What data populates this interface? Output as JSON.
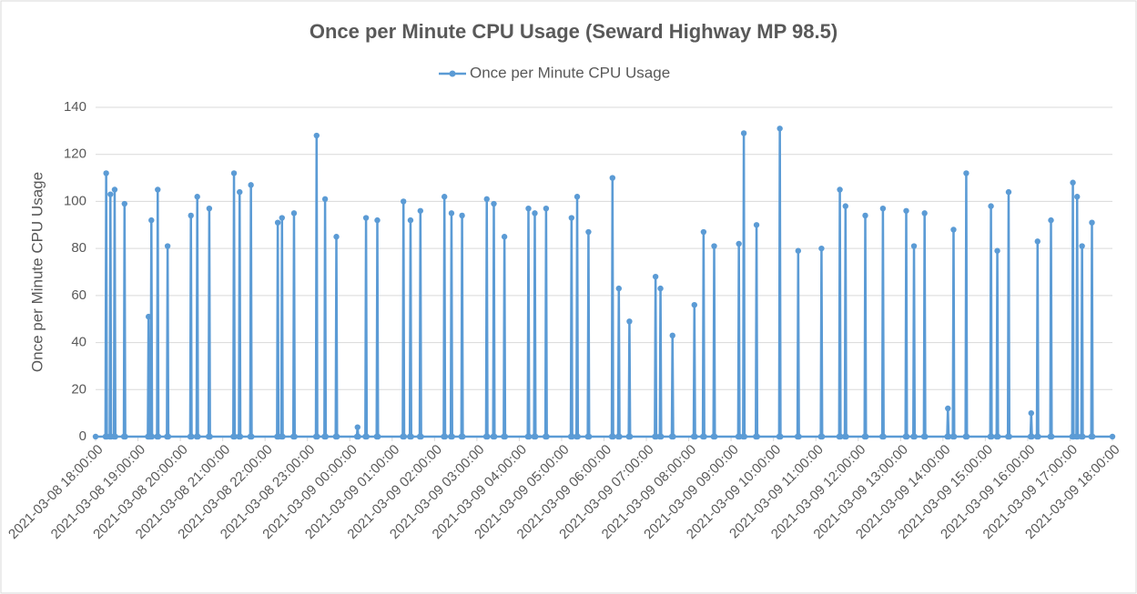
{
  "chart_data": {
    "type": "line",
    "title": "Once per Minute CPU Usage (Seward Highway MP 98.5)",
    "ylabel": "Once per Minute CPU Usage",
    "ylim": [
      0,
      140
    ],
    "yticks": [
      0,
      20,
      40,
      60,
      80,
      100,
      120,
      140
    ],
    "grid": true,
    "legend": "top",
    "xlim": [
      "2021-03-08 18:00:00",
      "2021-03-09 18:00:00"
    ],
    "xticks": [
      "2021-03-08 18:00:00",
      "2021-03-08 19:00:00",
      "2021-03-08 20:00:00",
      "2021-03-08 21:00:00",
      "2021-03-08 22:00:00",
      "2021-03-08 23:00:00",
      "2021-03-09 00:00:00",
      "2021-03-09 01:00:00",
      "2021-03-09 02:00:00",
      "2021-03-09 03:00:00",
      "2021-03-09 04:00:00",
      "2021-03-09 05:00:00",
      "2021-03-09 06:00:00",
      "2021-03-09 07:00:00",
      "2021-03-09 08:00:00",
      "2021-03-09 09:00:00",
      "2021-03-09 10:00:00",
      "2021-03-09 11:00:00",
      "2021-03-09 12:00:00",
      "2021-03-09 13:00:00",
      "2021-03-09 14:00:00",
      "2021-03-09 15:00:00",
      "2021-03-09 16:00:00",
      "2021-03-09 17:00:00",
      "2021-03-09 18:00:00"
    ],
    "x": [
      "2021-03-08 18:00:00",
      "2021-03-08 18:14:00",
      "2021-03-08 18:15:00",
      "2021-03-08 18:16:00",
      "2021-03-08 18:20:00",
      "2021-03-08 18:21:00",
      "2021-03-08 18:22:00",
      "2021-03-08 18:26:00",
      "2021-03-08 18:27:00",
      "2021-03-08 18:28:00",
      "2021-03-08 18:40:00",
      "2021-03-08 18:41:00",
      "2021-03-08 18:42:00",
      "2021-03-08 19:14:00",
      "2021-03-08 19:15:00",
      "2021-03-08 19:16:00",
      "2021-03-08 19:18:00",
      "2021-03-08 19:19:00",
      "2021-03-08 19:20:00",
      "2021-03-08 19:27:00",
      "2021-03-08 19:28:00",
      "2021-03-08 19:29:00",
      "2021-03-08 19:41:00",
      "2021-03-08 19:42:00",
      "2021-03-08 19:43:00",
      "2021-03-08 20:14:00",
      "2021-03-08 20:15:00",
      "2021-03-08 20:16:00",
      "2021-03-08 20:23:00",
      "2021-03-08 20:24:00",
      "2021-03-08 20:25:00",
      "2021-03-08 20:40:00",
      "2021-03-08 20:41:00",
      "2021-03-08 20:42:00",
      "2021-03-08 21:15:00",
      "2021-03-08 21:16:00",
      "2021-03-08 21:17:00",
      "2021-03-08 21:23:00",
      "2021-03-08 21:24:00",
      "2021-03-08 21:25:00",
      "2021-03-08 21:39:00",
      "2021-03-08 21:40:00",
      "2021-03-08 21:41:00",
      "2021-03-08 22:17:00",
      "2021-03-08 22:18:00",
      "2021-03-08 22:19:00",
      "2021-03-08 22:23:00",
      "2021-03-08 22:24:00",
      "2021-03-08 22:25:00",
      "2021-03-08 22:40:00",
      "2021-03-08 22:41:00",
      "2021-03-08 22:42:00",
      "2021-03-08 23:12:00",
      "2021-03-08 23:13:00",
      "2021-03-08 23:14:00",
      "2021-03-08 23:24:00",
      "2021-03-08 23:25:00",
      "2021-03-08 23:26:00",
      "2021-03-08 23:40:00",
      "2021-03-08 23:41:00",
      "2021-03-08 23:42:00",
      "2021-03-09 00:10:00",
      "2021-03-09 00:11:00",
      "2021-03-09 00:12:00",
      "2021-03-09 00:22:00",
      "2021-03-09 00:23:00",
      "2021-03-09 00:24:00",
      "2021-03-09 00:38:00",
      "2021-03-09 00:39:00",
      "2021-03-09 00:40:00",
      "2021-03-09 01:15:00",
      "2021-03-09 01:16:00",
      "2021-03-09 01:17:00",
      "2021-03-09 01:25:00",
      "2021-03-09 01:26:00",
      "2021-03-09 01:27:00",
      "2021-03-09 01:39:00",
      "2021-03-09 01:40:00",
      "2021-03-09 01:41:00",
      "2021-03-09 02:13:00",
      "2021-03-09 02:14:00",
      "2021-03-09 02:15:00",
      "2021-03-09 02:23:00",
      "2021-03-09 02:24:00",
      "2021-03-09 02:25:00",
      "2021-03-09 02:38:00",
      "2021-03-09 02:39:00",
      "2021-03-09 02:40:00",
      "2021-03-09 03:13:00",
      "2021-03-09 03:14:00",
      "2021-03-09 03:15:00",
      "2021-03-09 03:23:00",
      "2021-03-09 03:24:00",
      "2021-03-09 03:25:00",
      "2021-03-09 03:38:00",
      "2021-03-09 03:39:00",
      "2021-03-09 03:40:00",
      "2021-03-09 04:12:00",
      "2021-03-09 04:13:00",
      "2021-03-09 04:14:00",
      "2021-03-09 04:21:00",
      "2021-03-09 04:22:00",
      "2021-03-09 04:23:00",
      "2021-03-09 04:37:00",
      "2021-03-09 04:38:00",
      "2021-03-09 04:39:00",
      "2021-03-09 05:13:00",
      "2021-03-09 05:14:00",
      "2021-03-09 05:15:00",
      "2021-03-09 05:21:00",
      "2021-03-09 05:22:00",
      "2021-03-09 05:23:00",
      "2021-03-09 05:37:00",
      "2021-03-09 05:38:00",
      "2021-03-09 05:39:00",
      "2021-03-09 06:11:00",
      "2021-03-09 06:12:00",
      "2021-03-09 06:13:00",
      "2021-03-09 06:20:00",
      "2021-03-09 06:21:00",
      "2021-03-09 06:22:00",
      "2021-03-09 06:35:00",
      "2021-03-09 06:36:00",
      "2021-03-09 06:37:00",
      "2021-03-09 07:12:00",
      "2021-03-09 07:13:00",
      "2021-03-09 07:14:00",
      "2021-03-09 07:19:00",
      "2021-03-09 07:20:00",
      "2021-03-09 07:21:00",
      "2021-03-09 07:36:00",
      "2021-03-09 07:37:00",
      "2021-03-09 07:38:00",
      "2021-03-09 08:07:00",
      "2021-03-09 08:08:00",
      "2021-03-09 08:09:00",
      "2021-03-09 08:20:00",
      "2021-03-09 08:21:00",
      "2021-03-09 08:22:00",
      "2021-03-09 08:35:00",
      "2021-03-09 08:36:00",
      "2021-03-09 08:37:00",
      "2021-03-09 09:10:00",
      "2021-03-09 09:11:00",
      "2021-03-09 09:12:00",
      "2021-03-09 09:17:00",
      "2021-03-09 09:18:00",
      "2021-03-09 09:19:00",
      "2021-03-09 09:35:00",
      "2021-03-09 09:36:00",
      "2021-03-09 09:37:00",
      "2021-03-09 10:08:00",
      "2021-03-09 10:09:00",
      "2021-03-09 10:10:00",
      "2021-03-09 10:34:00",
      "2021-03-09 10:35:00",
      "2021-03-09 10:36:00",
      "2021-03-09 11:07:00",
      "2021-03-09 11:08:00",
      "2021-03-09 11:09:00",
      "2021-03-09 11:33:00",
      "2021-03-09 11:34:00",
      "2021-03-09 11:35:00",
      "2021-03-09 11:41:00",
      "2021-03-09 11:42:00",
      "2021-03-09 11:43:00",
      "2021-03-09 12:09:00",
      "2021-03-09 12:10:00",
      "2021-03-09 12:11:00",
      "2021-03-09 12:34:00",
      "2021-03-09 12:35:00",
      "2021-03-09 12:36:00",
      "2021-03-09 13:07:00",
      "2021-03-09 13:08:00",
      "2021-03-09 13:09:00",
      "2021-03-09 13:18:00",
      "2021-03-09 13:19:00",
      "2021-03-09 13:20:00",
      "2021-03-09 13:33:00",
      "2021-03-09 13:34:00",
      "2021-03-09 13:35:00",
      "2021-03-09 14:06:00",
      "2021-03-09 14:07:00",
      "2021-03-09 14:08:00",
      "2021-03-09 14:14:00",
      "2021-03-09 14:15:00",
      "2021-03-09 14:16:00",
      "2021-03-09 14:32:00",
      "2021-03-09 14:33:00",
      "2021-03-09 14:34:00",
      "2021-03-09 15:07:00",
      "2021-03-09 15:08:00",
      "2021-03-09 15:09:00",
      "2021-03-09 15:16:00",
      "2021-03-09 15:17:00",
      "2021-03-09 15:18:00",
      "2021-03-09 15:32:00",
      "2021-03-09 15:33:00",
      "2021-03-09 15:34:00",
      "2021-03-09 16:04:00",
      "2021-03-09 16:05:00",
      "2021-03-09 16:06:00",
      "2021-03-09 16:13:00",
      "2021-03-09 16:14:00",
      "2021-03-09 16:15:00",
      "2021-03-09 16:32:00",
      "2021-03-09 16:33:00",
      "2021-03-09 16:34:00",
      "2021-03-09 17:03:00",
      "2021-03-09 17:04:00",
      "2021-03-09 17:05:00",
      "2021-03-09 17:09:00",
      "2021-03-09 17:10:00",
      "2021-03-09 17:11:00",
      "2021-03-09 17:16:00",
      "2021-03-09 17:17:00",
      "2021-03-09 17:18:00",
      "2021-03-09 17:30:00",
      "2021-03-09 17:31:00",
      "2021-03-09 17:32:00",
      "2021-03-09 18:00:00"
    ],
    "series": [
      {
        "name": "Once per Minute CPU Usage",
        "color": "#5b9bd5",
        "values": [
          0,
          0,
          112,
          0,
          0,
          103,
          0,
          0,
          105,
          0,
          0,
          99,
          0,
          0,
          51,
          0,
          0,
          92,
          0,
          0,
          105,
          0,
          0,
          81,
          0,
          0,
          94,
          0,
          0,
          102,
          0,
          0,
          97,
          0,
          0,
          112,
          0,
          0,
          104,
          0,
          0,
          107,
          0,
          0,
          91,
          0,
          0,
          93,
          0,
          0,
          95,
          0,
          0,
          128,
          0,
          0,
          101,
          0,
          0,
          85,
          0,
          0,
          4,
          0,
          0,
          93,
          0,
          0,
          92,
          0,
          0,
          100,
          0,
          0,
          92,
          0,
          0,
          96,
          0,
          0,
          102,
          0,
          0,
          95,
          0,
          0,
          94,
          0,
          0,
          101,
          0,
          0,
          99,
          0,
          0,
          85,
          0,
          0,
          97,
          0,
          0,
          95,
          0,
          0,
          97,
          0,
          0,
          93,
          0,
          0,
          102,
          0,
          0,
          87,
          0,
          0,
          110,
          0,
          0,
          63,
          0,
          0,
          49,
          0,
          0,
          68,
          0,
          0,
          63,
          0,
          0,
          43,
          0,
          0,
          56,
          0,
          0,
          87,
          0,
          0,
          81,
          0,
          0,
          82,
          0,
          0,
          129,
          0,
          0,
          90,
          0,
          0,
          131,
          0,
          0,
          79,
          0,
          0,
          80,
          0,
          0,
          105,
          0,
          0,
          98,
          0,
          0,
          94,
          0,
          0,
          97,
          0,
          0,
          96,
          0,
          0,
          81,
          0,
          0,
          95,
          0,
          0,
          12,
          0,
          0,
          88,
          0,
          0,
          112,
          0,
          0,
          98,
          0,
          0,
          79,
          0,
          0,
          104,
          0,
          0,
          10,
          0,
          0,
          83,
          0,
          0,
          92,
          0,
          0,
          108,
          0,
          0,
          102,
          0,
          0,
          81,
          0,
          0,
          91,
          0,
          0
        ]
      }
    ]
  }
}
